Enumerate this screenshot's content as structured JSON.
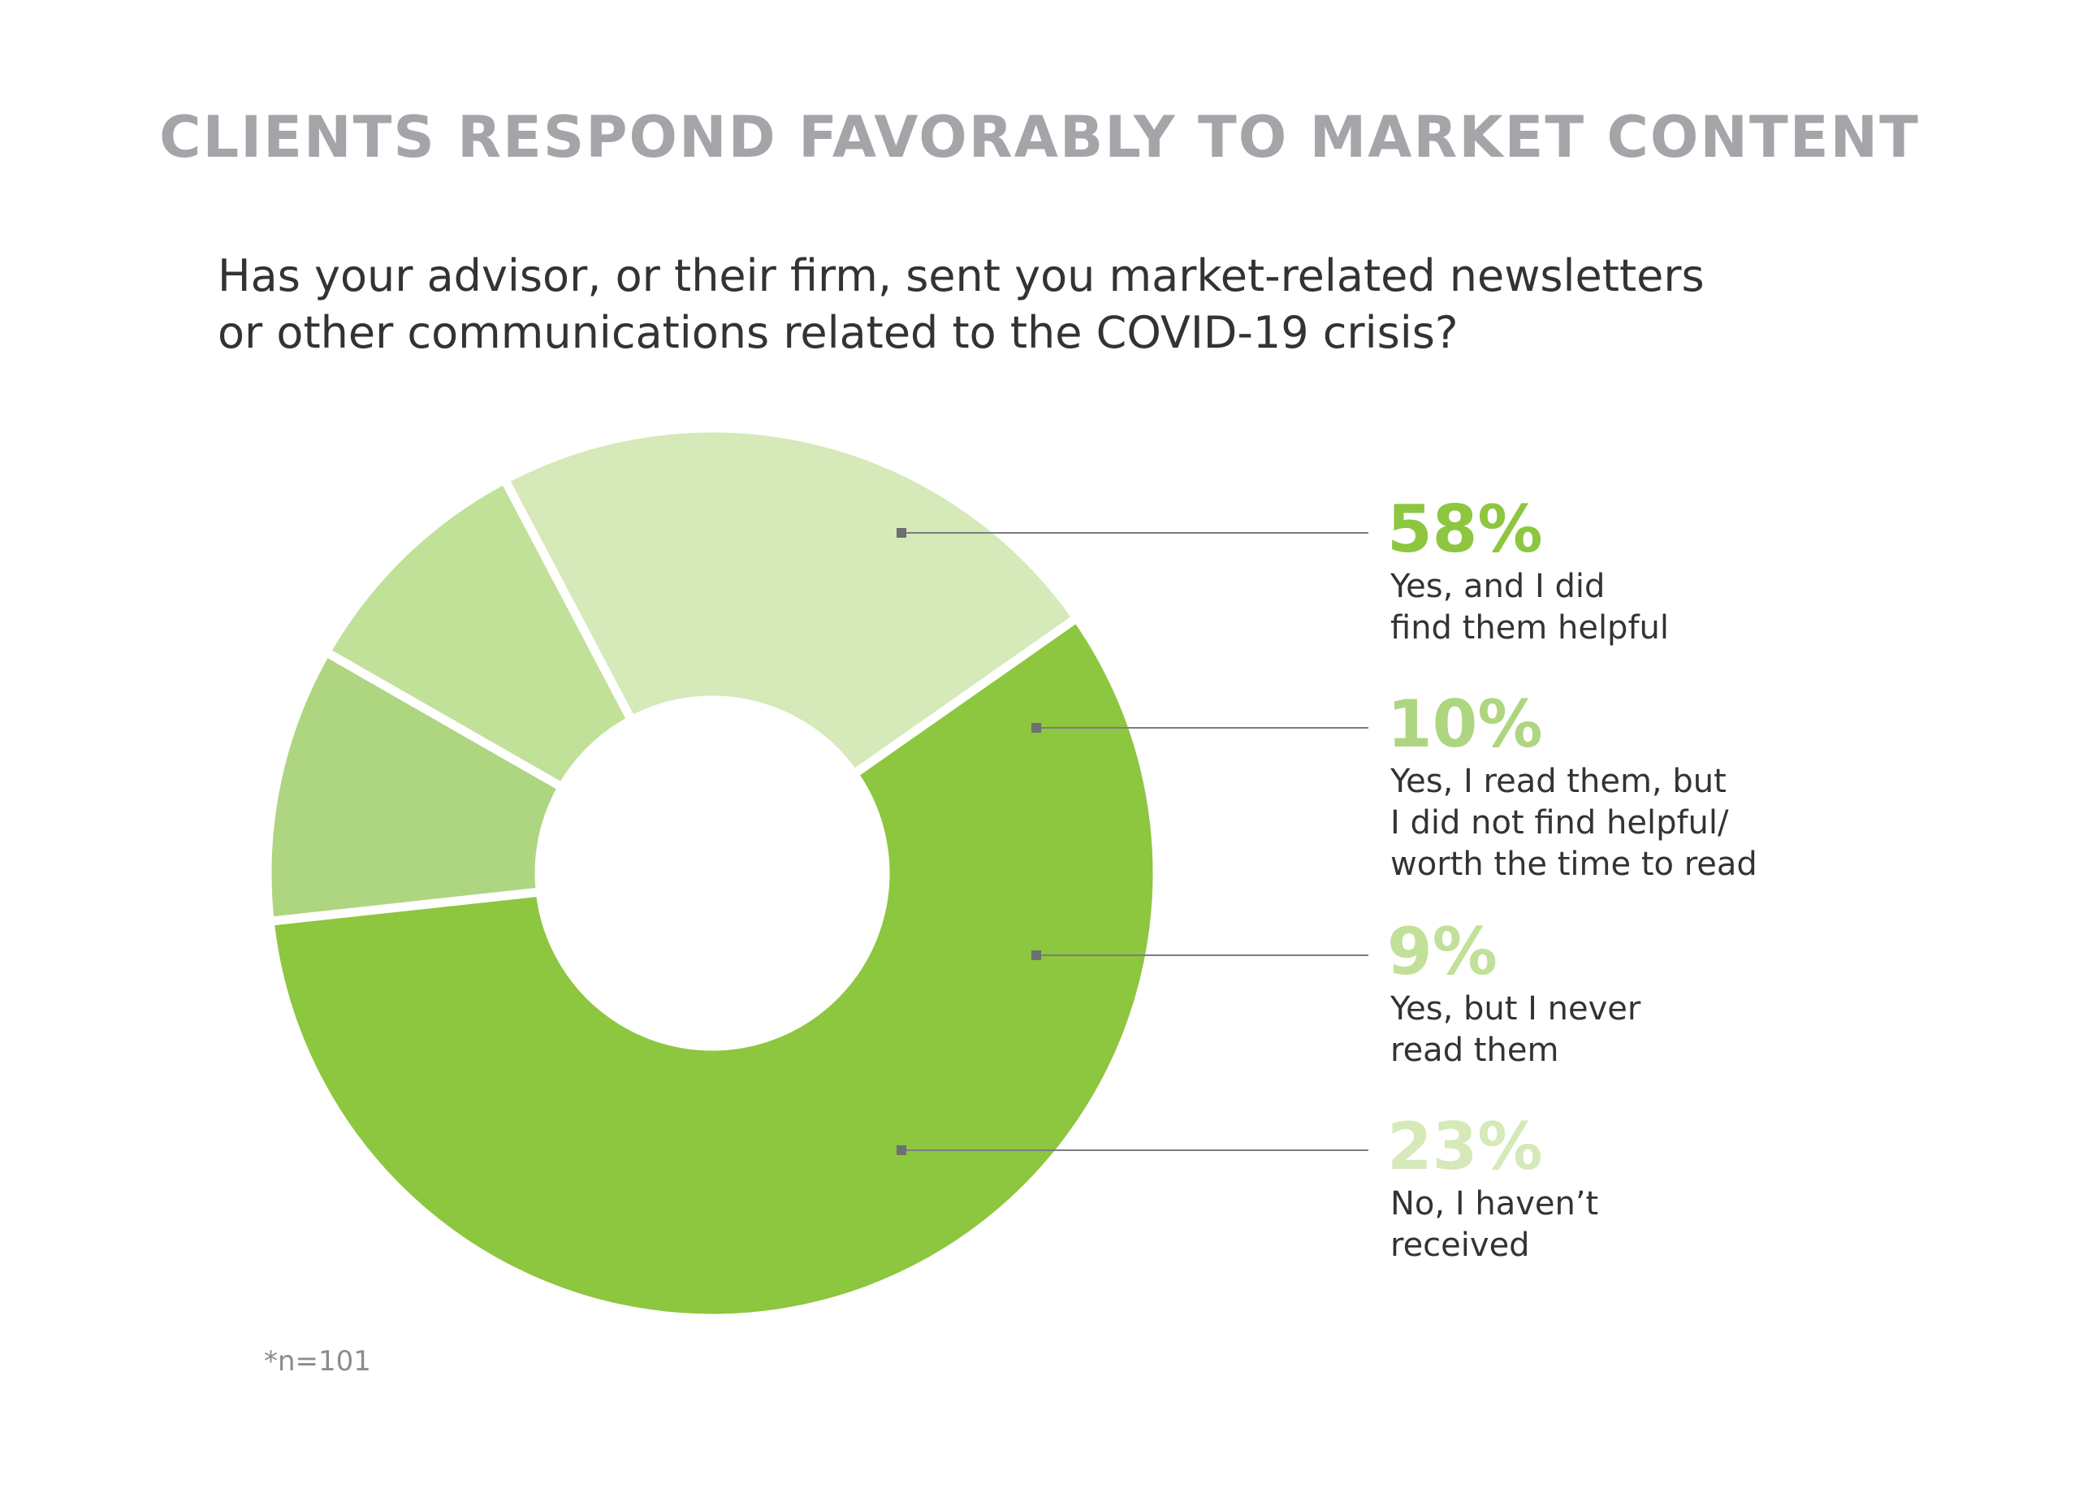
{
  "title": "CLIENTS RESPOND FAVORABLY TO MARKET CONTENT",
  "question": {
    "line1": "Has your advisor, or their firm, sent you market-related newsletters",
    "line2": "or other communications related to the COVID-19 crisis?"
  },
  "footnote": "*n=101",
  "chart_data": {
    "type": "pie",
    "values": [
      58,
      10,
      9,
      23
    ],
    "categories": [
      "Yes, and I did find them helpful",
      "Yes, I read them, but I did not find helpful/ worth the time to read",
      "Yes, but I never read them",
      "No, I haven’t received"
    ],
    "colors": [
      "#8dc63f",
      "#aed580",
      "#c1e098",
      "#d5e9b9"
    ],
    "donut": true,
    "labels": [
      {
        "pct": "58%",
        "lines": [
          "Yes, and I did",
          "find them helpful"
        ]
      },
      {
        "pct": "10%",
        "lines": [
          "Yes, I read them, but",
          "I did not find helpful/",
          "worth the time to read"
        ]
      },
      {
        "pct": "9%",
        "lines": [
          "Yes, but I never",
          "read them"
        ]
      },
      {
        "pct": "23%",
        "lines": [
          "No, I haven’t",
          "received"
        ]
      }
    ]
  }
}
